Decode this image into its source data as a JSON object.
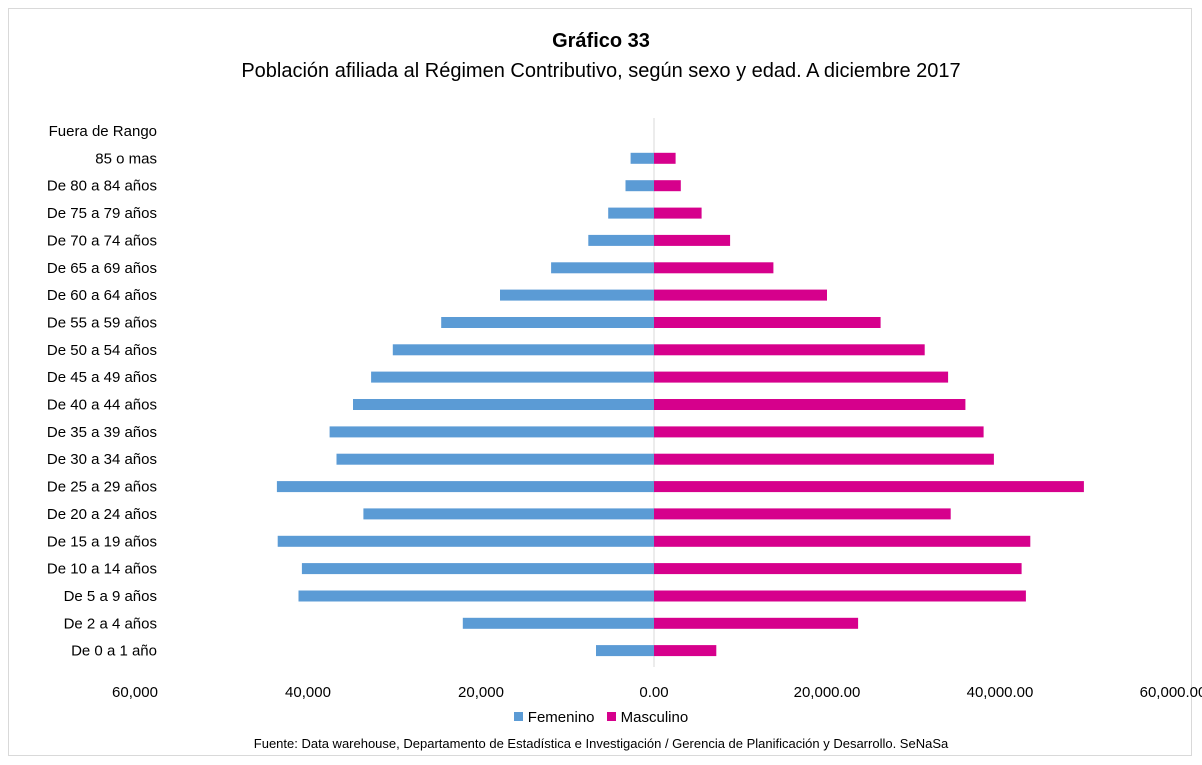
{
  "chart_data": {
    "type": "bar",
    "orientation": "horizontal",
    "title": "Gráfico 33",
    "subtitle": "Población afiliada al Régimen Contributivo, según sexo y edad. A diciembre 2017",
    "categories": [
      "Fuera de Rango",
      "85 o mas",
      "De 80 a 84 años",
      "De 75 a 79 años",
      "De 70 a 74 años",
      "De 65 a 69 años",
      "De 60 a 64 años",
      "De 55 a 59 años",
      "De 50 a 54 años",
      "De 45 a 49 años",
      "De 40 a 44 años",
      "De 35 a 39 años",
      "De 30 a 34 años",
      "De 25 a 29 años",
      "De 20 a 24 años",
      "De 15 a 19 años",
      "De 10 a 14 años",
      "De 5 a 9 años",
      "De 2 a 4 años",
      "De 0 a 1 año"
    ],
    "series": [
      {
        "name": "Femenino",
        "color": "#5b9bd5",
        "values": [
          0,
          -2700,
          -3300,
          -5300,
          -7600,
          -11900,
          -17800,
          -24600,
          -30200,
          -32700,
          -34800,
          -37500,
          -36700,
          -43600,
          -33600,
          -43500,
          -40700,
          -41100,
          -22100,
          -6700
        ]
      },
      {
        "name": "Masculino",
        "color": "#d6008c",
        "values": [
          0,
          2500,
          3100,
          5500,
          8800,
          13800,
          20000,
          26200,
          31300,
          34000,
          36000,
          38100,
          39300,
          49700,
          34300,
          43500,
          42500,
          43000,
          23600,
          7200
        ]
      }
    ],
    "xlim": [
      -60000,
      60000
    ],
    "xticks": [
      -60000,
      -40000,
      -20000,
      0,
      20000,
      40000,
      60000
    ],
    "xtick_labels": [
      "60,000",
      "40,000",
      "20,000",
      "0.00",
      "20,000.00",
      "40,000.00",
      "60,000.00"
    ],
    "legend_position": "bottom",
    "grid": false,
    "source": "Fuente: Data warehouse, Departamento de Estadística e Investigación / Gerencia de Planificación y Desarrollo. SeNaSa"
  }
}
